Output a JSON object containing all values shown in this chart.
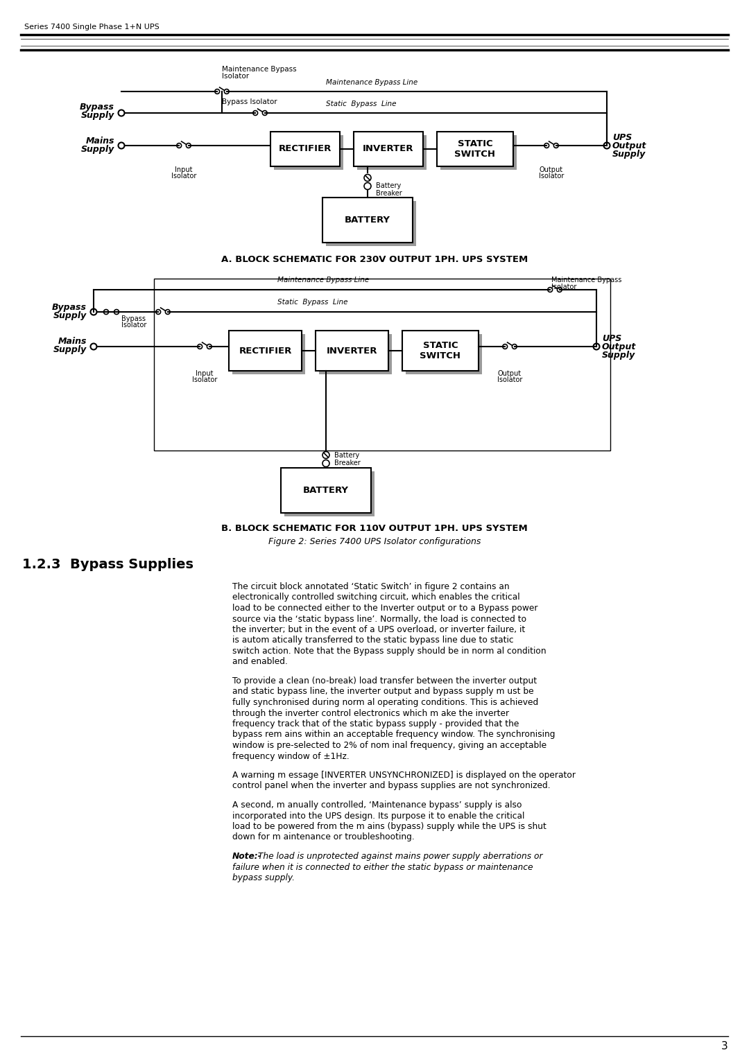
{
  "page_title": "Series 7400 Single Phase 1+N UPS",
  "page_number": "3",
  "diagram_a_title": "A. BLOCK SCHEMATIC FOR 230V OUTPUT 1PH. UPS SYSTEM",
  "diagram_b_title": "B. BLOCK SCHEMATIC FOR 110V OUTPUT 1PH. UPS SYSTEM",
  "figure_caption": "Figure 2: Series 7400 UPS Isolator configurations",
  "section_heading": "1.2.3  Bypass Supplies",
  "para1": "The circuit block annotated ‘Static Switch’ in figure 2 contains an electronically controlled switching circuit, which enables the critical load to be connected either to the Inverter output or to a Bypass power source via the ‘static bypass line’.  Normally, the load is connected to the inverter; but in the event of a UPS overload, or inverter failure, it is autom atically transferred to the static bypass line due to static switch action. Note that the Bypass supply should be in norm al condition and enabled.",
  "para2": "To provide a clean (no-break) load transfer between the inverter output and static bypass line, the inverter output and bypass supply m ust be fully synchronised during norm al operating conditions. This is achieved through the inverter control electronics which m ake the inverter frequency track that of the static bypass supply - provided that the bypass rem ains within an acceptable frequency window.  The synchronising window is pre-selected to 2% of nom inal frequency, giving an acceptable frequency window of ±1Hz.",
  "para3": "A warning  m essage [INVERTER UNSYNCHRONIZED] is displayed on the operator control panel when the inverter and bypass supplies are not synchronized.",
  "para4": "A second, m anually controlled, ‘Maintenance bypass’ supply is also incorporated into the UPS design.  Its purpose it to enable the critical load to be powered from the m ains (bypass) supply while the UPS is shut down for m aintenance or troubleshooting.",
  "para5_bold": "Note:-",
  "para5_rest": " The load is unprotected against mains power supply aberrations or failure when it is connected to either the static bypass or maintenance bypass supply.",
  "bg": "#ffffff",
  "lc": "#000000"
}
